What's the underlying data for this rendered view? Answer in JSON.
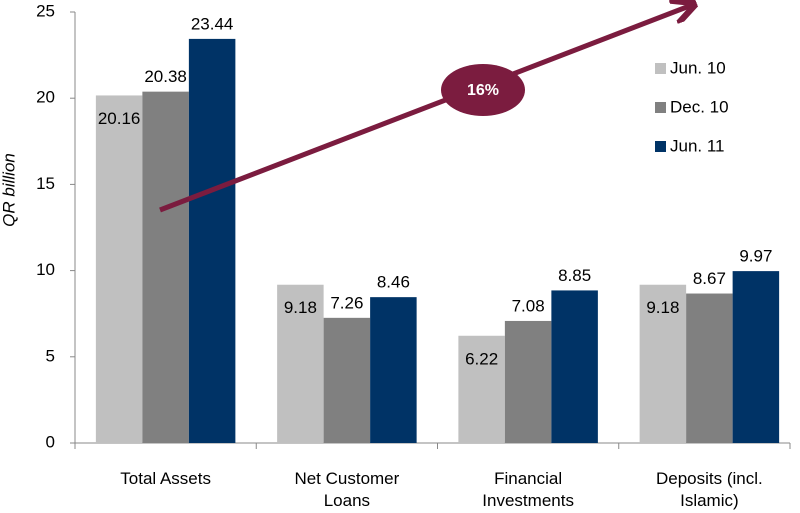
{
  "chart_data": {
    "type": "bar",
    "y_axis_label": "QR billion",
    "categories": [
      [
        "Total Assets"
      ],
      [
        "Net Customer",
        "Loans"
      ],
      [
        "Financial",
        "Investments"
      ],
      [
        "Deposits (incl.",
        "Islamic)"
      ]
    ],
    "series": [
      {
        "name": "Jun. 10",
        "color": "#c0c0c0",
        "values": [
          20.16,
          9.18,
          6.22,
          9.18
        ]
      },
      {
        "name": "Dec. 10",
        "color": "#808080",
        "values": [
          20.38,
          7.26,
          7.08,
          8.67
        ]
      },
      {
        "name": "Jun. 11",
        "color": "#003366",
        "values": [
          23.44,
          8.46,
          8.85,
          9.97
        ]
      }
    ],
    "ylim": [
      0,
      25
    ],
    "yticks": [
      0,
      5,
      10,
      15,
      20,
      25
    ],
    "annotation": "16%",
    "annotation_color": "#7b1c3f",
    "legend": "right"
  }
}
